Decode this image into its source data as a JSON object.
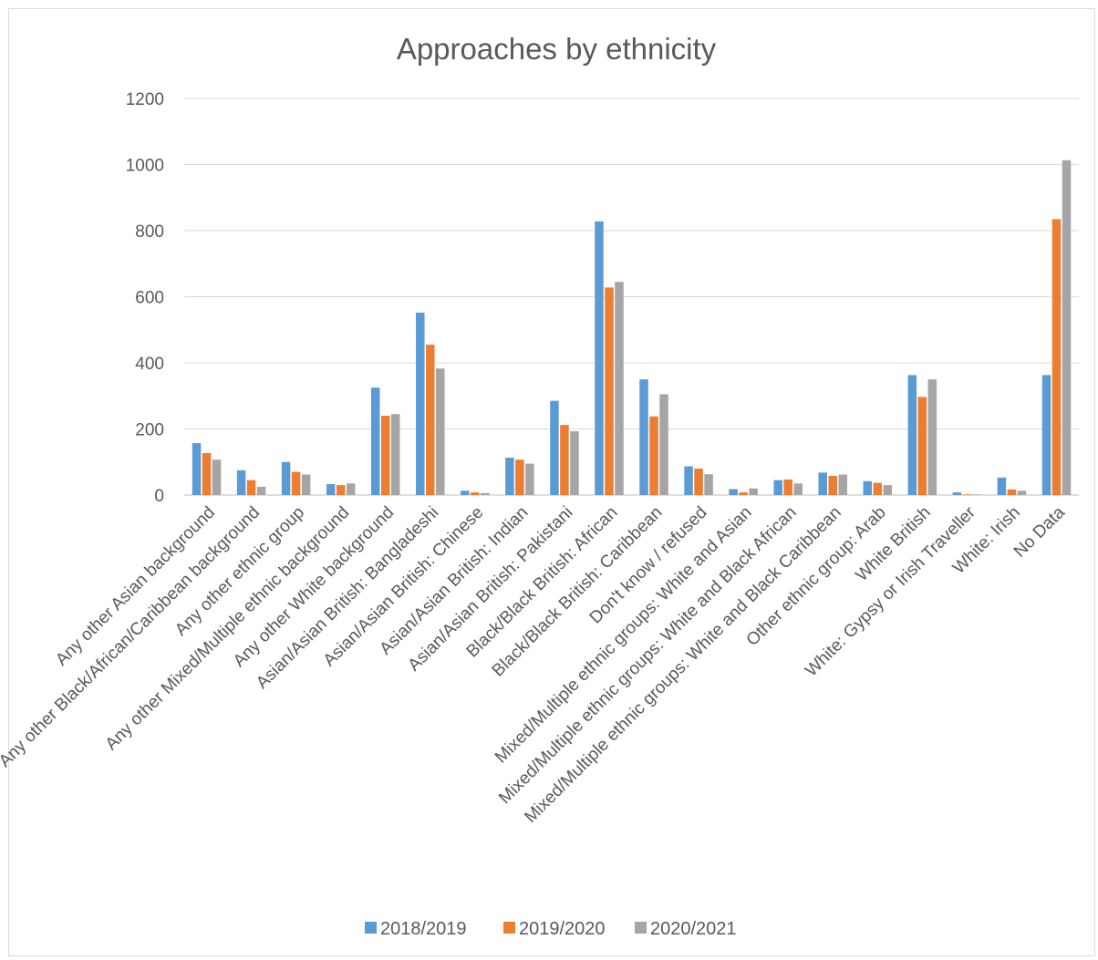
{
  "chart_data": {
    "type": "bar",
    "title": "Approaches by ethnicity",
    "xlabel": "",
    "ylabel": "",
    "ylim": [
      0,
      1200
    ],
    "yticks": [
      0,
      200,
      400,
      600,
      800,
      1000,
      1200
    ],
    "grid": true,
    "legend": "bottom",
    "categories": [
      "Any other Asian background",
      "Any other Black/African/Caribbean background",
      "Any other ethnic group",
      "Any other Mixed/Multiple ethnic background",
      "Any other White background",
      "Asian/Asian British: Bangladeshi",
      "Asian/Asian British: Chinese",
      "Asian/Asian British: Indian",
      "Asian/Asian British: Pakistani",
      "Black/Black British: African",
      "Black/Black British: Caribbean",
      "Don't know / refused",
      "Mixed/Multiple ethnic groups: White and Asian",
      "Mixed/Multiple ethnic groups: White and Black African",
      "Mixed/Multiple ethnic groups: White and Black Caribbean",
      "Other ethnic group: Arab",
      "White British",
      "White: Gypsy or Irish Traveller",
      "White: Irish",
      "No Data"
    ],
    "series": [
      {
        "name": "2018/2019",
        "color": "#5b9bd5",
        "values": [
          157,
          75,
          100,
          33,
          325,
          552,
          13,
          113,
          285,
          828,
          350,
          87,
          18,
          45,
          68,
          42,
          363,
          8,
          53,
          363
        ]
      },
      {
        "name": "2019/2020",
        "color": "#ed7d31",
        "values": [
          127,
          45,
          70,
          30,
          240,
          455,
          8,
          107,
          212,
          628,
          238,
          80,
          8,
          47,
          58,
          37,
          297,
          2,
          17,
          835
        ]
      },
      {
        "name": "2020/2021",
        "color": "#a5a5a5",
        "values": [
          107,
          25,
          62,
          35,
          245,
          383,
          6,
          95,
          193,
          645,
          305,
          63,
          20,
          35,
          62,
          30,
          350,
          2,
          13,
          1013
        ]
      }
    ]
  }
}
